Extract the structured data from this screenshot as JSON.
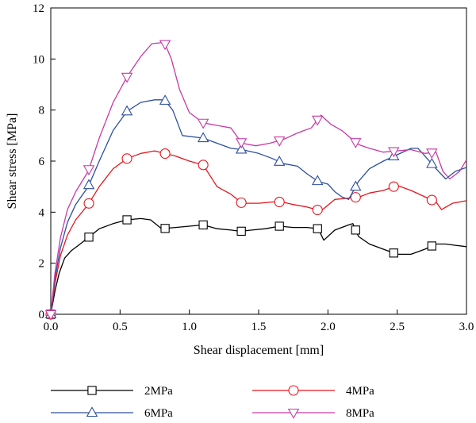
{
  "chart_data": {
    "type": "line",
    "xlabel": "Shear displacement [mm]",
    "ylabel": "Shear stress [MPa]",
    "xlim": [
      0,
      3.0
    ],
    "ylim": [
      0,
      12
    ],
    "xticks": [
      "0.0",
      "0.5",
      "1.0",
      "1.5",
      "2.0",
      "2.5",
      "3.0"
    ],
    "yticks": [
      "0",
      "2",
      "4",
      "6",
      "8",
      "10",
      "12"
    ],
    "grid": false,
    "legend_position": "bottom",
    "series": [
      {
        "name": "2MPa",
        "color": "#000000",
        "marker": "square",
        "x": [
          0,
          0.03,
          0.06,
          0.1,
          0.15,
          0.2,
          0.27,
          0.35,
          0.45,
          0.55,
          0.65,
          0.72,
          0.8,
          0.9,
          1.0,
          1.1,
          1.2,
          1.3,
          1.37,
          1.45,
          1.55,
          1.65,
          1.75,
          1.85,
          1.93,
          1.97,
          2.05,
          2.15,
          2.18,
          2.22,
          2.3,
          2.4,
          2.5,
          2.6,
          2.7,
          2.78,
          2.85,
          2.92,
          3.0
        ],
        "y": [
          0,
          0.9,
          1.6,
          2.2,
          2.5,
          2.7,
          3.0,
          3.35,
          3.55,
          3.7,
          3.75,
          3.7,
          3.35,
          3.4,
          3.45,
          3.5,
          3.35,
          3.3,
          3.25,
          3.3,
          3.35,
          3.45,
          3.4,
          3.4,
          3.35,
          2.9,
          3.3,
          3.5,
          3.55,
          3.05,
          2.75,
          2.55,
          2.35,
          2.35,
          2.55,
          2.75,
          2.75,
          2.7,
          2.65
        ]
      },
      {
        "name": "4MPa",
        "color": "#e8141c",
        "marker": "circle",
        "x": [
          0,
          0.03,
          0.07,
          0.12,
          0.18,
          0.27,
          0.35,
          0.45,
          0.55,
          0.65,
          0.75,
          0.82,
          0.9,
          1.0,
          1.1,
          1.2,
          1.3,
          1.38,
          1.5,
          1.6,
          1.67,
          1.75,
          1.85,
          1.95,
          2.05,
          2.15,
          2.23,
          2.3,
          2.4,
          2.5,
          2.6,
          2.7,
          2.78,
          2.82,
          2.9,
          3.0
        ],
        "y": [
          0,
          1.2,
          2.3,
          3.1,
          3.7,
          4.3,
          5.0,
          5.7,
          6.1,
          6.3,
          6.4,
          6.3,
          6.2,
          6.0,
          5.85,
          5.0,
          4.7,
          4.35,
          4.35,
          4.4,
          4.4,
          4.3,
          4.2,
          4.05,
          4.5,
          4.55,
          4.6,
          4.75,
          4.85,
          5.05,
          4.85,
          4.6,
          4.4,
          4.1,
          4.35,
          4.45
        ]
      },
      {
        "name": "6MPa",
        "color": "#2d4f9f",
        "marker": "triangle-up",
        "x": [
          0,
          0.03,
          0.07,
          0.12,
          0.18,
          0.27,
          0.35,
          0.45,
          0.55,
          0.65,
          0.75,
          0.82,
          0.88,
          0.95,
          1.1,
          1.2,
          1.3,
          1.38,
          1.5,
          1.6,
          1.68,
          1.78,
          1.85,
          1.93,
          2.0,
          2.05,
          2.1,
          2.15,
          2.22,
          2.3,
          2.4,
          2.5,
          2.6,
          2.65,
          2.7,
          2.78,
          2.85,
          2.92,
          3.0
        ],
        "y": [
          0,
          1.4,
          2.6,
          3.6,
          4.3,
          5.0,
          6.0,
          7.2,
          7.95,
          8.3,
          8.4,
          8.4,
          8.0,
          7.0,
          6.9,
          6.7,
          6.5,
          6.45,
          6.3,
          6.1,
          5.9,
          5.8,
          5.5,
          5.2,
          5.1,
          4.8,
          4.6,
          4.5,
          5.2,
          5.7,
          6.0,
          6.25,
          6.5,
          6.5,
          6.2,
          5.7,
          5.3,
          5.6,
          5.75
        ]
      },
      {
        "name": "8MPa",
        "color": "#c73aa6",
        "marker": "triangle-down",
        "x": [
          0,
          0.03,
          0.07,
          0.12,
          0.18,
          0.27,
          0.35,
          0.45,
          0.55,
          0.65,
          0.73,
          0.82,
          0.87,
          0.93,
          1.0,
          1.1,
          1.2,
          1.3,
          1.38,
          1.48,
          1.58,
          1.68,
          1.78,
          1.88,
          1.95,
          2.02,
          2.1,
          2.22,
          2.3,
          2.4,
          2.5,
          2.6,
          2.7,
          2.78,
          2.83,
          2.88,
          2.95,
          3.0
        ],
        "y": [
          0,
          1.6,
          3.0,
          4.1,
          4.8,
          5.6,
          6.9,
          8.3,
          9.3,
          10.1,
          10.6,
          10.65,
          10.0,
          8.8,
          7.9,
          7.5,
          7.4,
          7.3,
          6.7,
          6.6,
          6.7,
          6.85,
          7.1,
          7.3,
          7.8,
          7.45,
          7.2,
          6.65,
          6.5,
          6.35,
          6.4,
          6.45,
          6.3,
          6.35,
          5.6,
          5.3,
          5.6,
          6.05
        ]
      }
    ]
  }
}
